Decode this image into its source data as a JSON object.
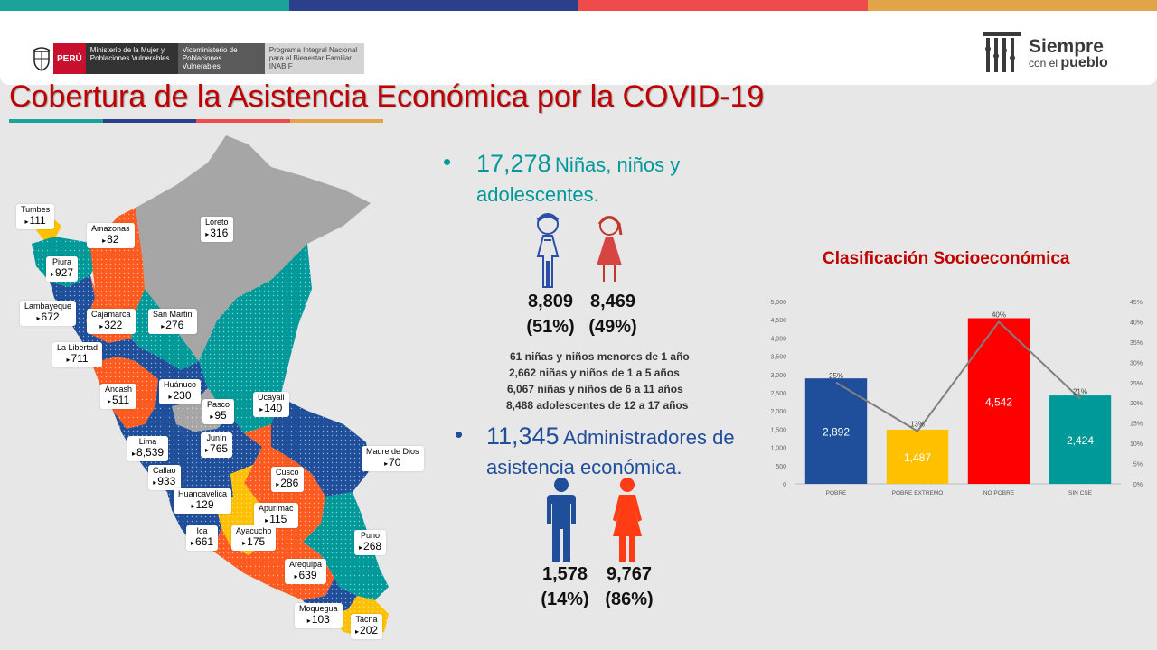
{
  "colors": {
    "blue": "#1f4e9a",
    "yellow": "#ffc000",
    "red": "#ff0000",
    "teal": "#009999",
    "orange": "#ff5a1f",
    "gray": "#a6a6a6",
    "title_red": "#c00000"
  },
  "header": {
    "peru": "PERÚ",
    "ministerio": "Ministerio de la Mujer y Poblaciones Vulnerables",
    "viceministerio": "Viceministerio de Poblaciones Vulnerables",
    "programa": "Programa Integral Nacional para el Bienestar Familiar INABIF",
    "logo_title": "Siempre",
    "logo_sub1": "con el",
    "logo_sub2": "pueblo"
  },
  "title": "Cobertura de la Asistencia Económica por la COVID-19",
  "regions": [
    {
      "name": "Tumbes",
      "value": "111"
    },
    {
      "name": "Amazonas",
      "value": "82"
    },
    {
      "name": "Loreto",
      "value": "316"
    },
    {
      "name": "Piura",
      "value": "927"
    },
    {
      "name": "Lambayeque",
      "value": "672"
    },
    {
      "name": "Cajamarca",
      "value": "322"
    },
    {
      "name": "San Martin",
      "value": "276"
    },
    {
      "name": "La Libertad",
      "value": "711"
    },
    {
      "name": "Ancash",
      "value": "511"
    },
    {
      "name": "Huánuco",
      "value": "230"
    },
    {
      "name": "Ucayali",
      "value": "140"
    },
    {
      "name": "Pasco",
      "value": "95"
    },
    {
      "name": "Lima",
      "value": "8,539"
    },
    {
      "name": "Junín",
      "value": "765"
    },
    {
      "name": "Madre de Dios",
      "value": "70"
    },
    {
      "name": "Callao",
      "value": "933"
    },
    {
      "name": "Cusco",
      "value": "286"
    },
    {
      "name": "Huancavelica",
      "value": "129"
    },
    {
      "name": "Apurímac",
      "value": "115"
    },
    {
      "name": "Ica",
      "value": "661"
    },
    {
      "name": "Ayacucho",
      "value": "175"
    },
    {
      "name": "Puno",
      "value": "268"
    },
    {
      "name": "Arequipa",
      "value": "639"
    },
    {
      "name": "Moquegua",
      "value": "103"
    },
    {
      "name": "Tacna",
      "value": "202"
    }
  ],
  "children": {
    "total": "17,278",
    "label_l1": "Niñas, niños y",
    "label_l2": "adolescentes.",
    "boys_count": "8,809",
    "boys_pct": "(51%)",
    "girls_count": "8,469",
    "girls_pct": "(49%)",
    "breakdown": [
      "61 niñas y niños menores de 1 año",
      "2,662 niñas y niños de 1 a 5 años",
      "6,067 niñas y niños de 6 a 11 años",
      "8,488 adolescentes de 12 a 17 años"
    ]
  },
  "admins": {
    "total": "11,345",
    "label_l1": "Administradores de",
    "label_l2": "asistencia económica.",
    "men_count": "1,578",
    "men_pct": "(14%)",
    "women_count": "9,767",
    "women_pct": "(86%)"
  },
  "chart_data": {
    "type": "bar",
    "title": "Clasificación Socioeconómica",
    "categories": [
      "POBRE",
      "POBRE EXTREMO",
      "NO POBRE",
      "SIN CSE"
    ],
    "values": [
      2892,
      1487,
      4542,
      2424
    ],
    "value_labels": [
      "2,892",
      "1,487",
      "4,542",
      "2,424"
    ],
    "bar_colors": [
      "#1f4e9a",
      "#ffc000",
      "#ff0000",
      "#009999"
    ],
    "percent_series": [
      25,
      13,
      40,
      21
    ],
    "percent_labels": [
      "25%",
      "13%",
      "40%",
      "21%"
    ],
    "ylim": [
      0,
      5000
    ],
    "yticks": [
      "0",
      "500",
      "1,000",
      "1,500",
      "2,000",
      "2,500",
      "3,000",
      "3,500",
      "4,000",
      "4,500",
      "5,000"
    ],
    "y2lim": [
      0,
      45
    ],
    "y2ticks": [
      "0%",
      "5%",
      "10%",
      "15%",
      "20%",
      "25%",
      "30%",
      "35%",
      "40%",
      "45%"
    ],
    "line_color": "#808080"
  }
}
